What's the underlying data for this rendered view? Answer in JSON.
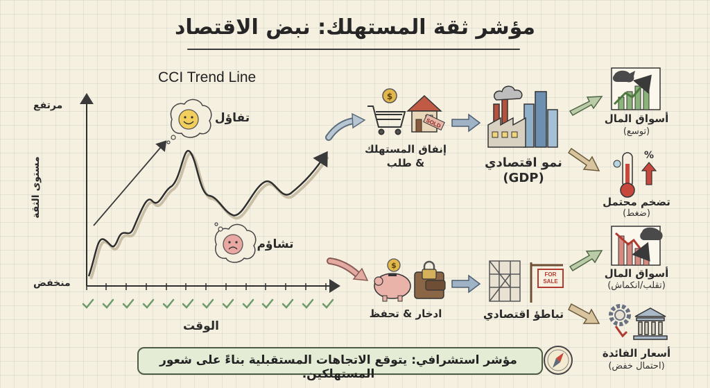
{
  "title": "مؤشر ثقة المستهلك: نبض الاقتصاد",
  "trend_title": "CCI Trend Line",
  "axis": {
    "y_label": "مستوى الثقة",
    "y_high": "مرتفع",
    "y_low": "منخفض",
    "x_label": "الوقت"
  },
  "moods": {
    "optimism": "تفاؤل",
    "pessimism": "تشاؤم"
  },
  "upper_path": {
    "spending": "إنفاق المستهلك",
    "spending_sub": "& طلب",
    "sold_tag": "SOLD",
    "growth": "نمو اقتصادي",
    "growth_sub": "(GDP)",
    "markets_up": "أسواق المال",
    "markets_up_sub": "(توسع)",
    "inflation": "تضخم محتمل",
    "inflation_sub": "(ضغط)",
    "percent_sign": "%"
  },
  "lower_path": {
    "saving": "ادخار & تحفظ",
    "slowdown": "تباطؤ اقتصادي",
    "for_sale": "FOR SALE",
    "markets_down": "أسواق المال",
    "markets_down_sub": "(تقلب/انكماش)",
    "rates": "أسعار الفائدة",
    "rates_sub": "(احتمال خفض)"
  },
  "footer": "مؤشر استشرافي: يتوقع الاتجاهات المستقبلية بناءً على شعور المستهلكين.",
  "colors": {
    "arrow_up": "#7a9a6e",
    "arrow_down": "#d49a92",
    "arrow_flow": "#8fa3b8",
    "arrow_inflation": "#c9b08a",
    "footer_bg": "#e4ecd6",
    "check": "#6d9a6a"
  },
  "icons": [
    "smiley-face-icon",
    "sad-face-icon",
    "shopping-cart-icon",
    "house-sold-icon",
    "factory-city-icon",
    "bull-chart-icon",
    "thermometer-icon",
    "piggy-bank-icon",
    "wallet-lock-icon",
    "construction-icon",
    "for-sale-sign-icon",
    "bear-chart-icon",
    "gears-icon",
    "bank-icon",
    "compass-icon"
  ]
}
